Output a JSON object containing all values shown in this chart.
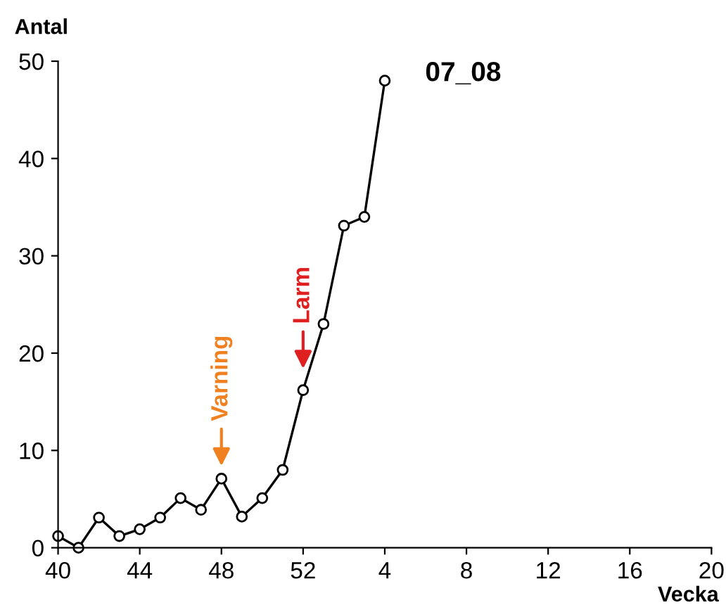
{
  "chart_data": {
    "type": "line",
    "title": "07_08",
    "xlabel": "Vecka",
    "ylabel": "Antal",
    "categories": [
      "40",
      null,
      null,
      null,
      "44",
      null,
      null,
      null,
      "48",
      null,
      null,
      null,
      "52",
      null,
      null,
      null,
      "4",
      null,
      null,
      null,
      "8",
      null,
      null,
      null,
      "12",
      null,
      null,
      null,
      "16",
      null,
      null,
      null,
      "20"
    ],
    "series": [
      {
        "color": "#000000",
        "values": [
          1.2,
          0,
          3.1,
          1.2,
          1.9,
          3.1,
          5.1,
          3.9,
          7.1,
          3.2,
          5.1,
          8,
          16.2,
          23,
          33.1,
          34,
          48,
          null,
          null,
          null,
          null,
          null,
          null,
          null,
          null,
          null,
          null,
          null,
          null,
          null,
          null,
          null,
          null
        ]
      }
    ],
    "ylim": [
      0,
      50
    ],
    "yticks": [
      0,
      10,
      20,
      30,
      40,
      50
    ],
    "marker": "circle",
    "line_style": "solid",
    "grid": false,
    "legend": false,
    "annotations": [
      "Varning",
      {
        "text": "Larm",
        "x": "52",
        "y": 18
      }
    ]
  }
}
